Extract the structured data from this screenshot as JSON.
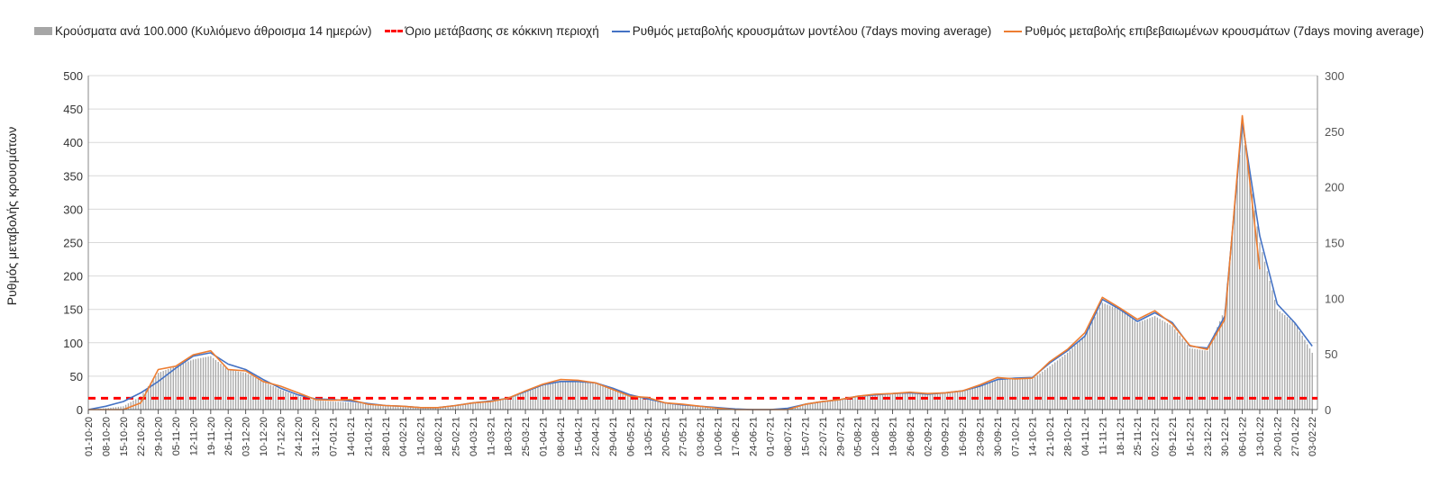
{
  "chart_data": {
    "type": "bar+line",
    "legend": [
      {
        "label": "Κρούσματα ανά 100.000 (Κυλιόμενο άθροισμα 14 ημερών)",
        "color": "#a6a6a6"
      },
      {
        "label": "Όριο μετάβασης σε κόκκινη περιοχή",
        "color": "#ff0000"
      },
      {
        "label": "Ρυθμός μεταβολής κρουσμάτων μοντέλου (7days moving average)",
        "color": "#4472c4"
      },
      {
        "label": "Ρυθμός μεταβολής επιβεβαιωμένων κρουσμάτων (7days moving average)",
        "color": "#ed7d31"
      }
    ],
    "legend_position": "top",
    "ylabel": "Ρυθμός μεταβολής κρουσμάτων",
    "ylim": [
      0,
      500
    ],
    "y2lim": [
      0,
      300
    ],
    "yticks": [
      "0",
      "50",
      "100",
      "150",
      "200",
      "250",
      "300",
      "350",
      "400",
      "450",
      "500"
    ],
    "y2ticks": [
      "0",
      "50",
      "100",
      "150",
      "200",
      "250",
      "300"
    ],
    "threshold": 17,
    "categories": [
      "01-10-20",
      "08-10-20",
      "15-10-20",
      "22-10-20",
      "29-10-20",
      "05-11-20",
      "12-11-20",
      "19-11-20",
      "26-11-20",
      "03-12-20",
      "10-12-20",
      "17-12-20",
      "24-12-20",
      "31-12-20",
      "07-01-21",
      "14-01-21",
      "21-01-21",
      "28-01-21",
      "04-02-21",
      "11-02-21",
      "18-02-21",
      "25-02-21",
      "04-03-21",
      "11-03-21",
      "18-03-21",
      "25-03-21",
      "01-04-21",
      "08-04-21",
      "15-04-21",
      "22-04-21",
      "29-04-21",
      "06-05-21",
      "13-05-21",
      "20-05-21",
      "27-05-21",
      "03-06-21",
      "10-06-21",
      "17-06-21",
      "24-06-21",
      "01-07-21",
      "08-07-21",
      "15-07-21",
      "22-07-21",
      "29-07-21",
      "05-08-21",
      "12-08-21",
      "19-08-21",
      "26-08-21",
      "02-09-21",
      "09-09-21",
      "16-09-21",
      "23-09-21",
      "30-09-21",
      "07-10-21",
      "14-10-21",
      "21-10-21",
      "28-10-21",
      "04-11-21",
      "11-11-21",
      "18-11-21",
      "25-11-21",
      "02-12-21",
      "09-12-21",
      "16-12-21",
      "23-12-21",
      "30-12-21",
      "06-01-22",
      "13-01-22",
      "20-01-22",
      "27-01-22",
      "03-02-22"
    ],
    "series": [
      {
        "name": "bars",
        "values": [
          0,
          2,
          5,
          20,
          55,
          65,
          75,
          80,
          60,
          55,
          42,
          30,
          20,
          14,
          12,
          11,
          8,
          5,
          4,
          3,
          3,
          6,
          10,
          13,
          17,
          27,
          37,
          42,
          42,
          40,
          32,
          22,
          15,
          9,
          6,
          4,
          2,
          1,
          0,
          0,
          2,
          8,
          12,
          15,
          20,
          22,
          24,
          25,
          23,
          25,
          28,
          35,
          45,
          46,
          46,
          65,
          85,
          110,
          160,
          150,
          130,
          140,
          125,
          92,
          88,
          150,
          420,
          250,
          150,
          130,
          85
        ]
      },
      {
        "name": "blue",
        "values": [
          0,
          5,
          12,
          25,
          42,
          62,
          80,
          85,
          68,
          60,
          45,
          32,
          22,
          16,
          15,
          13,
          9,
          6,
          5,
          3,
          3,
          6,
          10,
          13,
          17,
          27,
          37,
          42,
          42,
          40,
          32,
          22,
          16,
          10,
          7,
          5,
          3,
          1,
          0,
          0,
          2,
          8,
          12,
          15,
          20,
          22,
          24,
          25,
          23,
          25,
          28,
          35,
          45,
          47,
          48,
          70,
          88,
          110,
          165,
          150,
          132,
          145,
          130,
          95,
          92,
          140,
          430,
          260,
          158,
          130,
          95
        ]
      },
      {
        "name": "orange",
        "values": [
          0,
          0,
          0,
          10,
          60,
          65,
          82,
          88,
          60,
          58,
          42,
          35,
          25,
          15,
          14,
          15,
          8,
          6,
          5,
          3,
          3,
          6,
          10,
          12,
          17,
          28,
          38,
          45,
          44,
          40,
          30,
          20,
          18,
          10,
          8,
          5,
          2,
          0,
          0,
          0,
          0,
          8,
          12,
          15,
          20,
          23,
          24,
          26,
          24,
          25,
          28,
          37,
          48,
          46,
          47,
          72,
          90,
          115,
          168,
          152,
          135,
          148,
          128,
          96,
          90,
          135,
          440,
          210,
          null,
          null,
          null
        ]
      }
    ]
  }
}
